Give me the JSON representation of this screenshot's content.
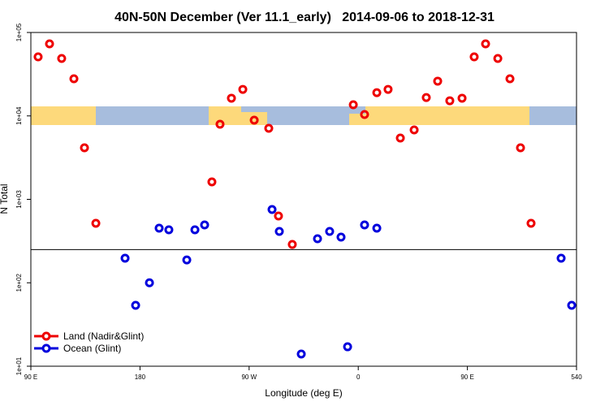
{
  "chart_data": {
    "type": "scatter",
    "title": "40N-50N December (Ver 11.1_early)   2014-09-06 to 2018-12-31",
    "x_label": "Longitude (deg E)",
    "y_label": "N Total",
    "y_scale": "log",
    "legend": "lower left",
    "hline": 250,
    "xlim": [
      90,
      540
    ],
    "xticks": [
      {
        "value": 90,
        "label": "90 E"
      },
      180,
      {
        "value": 270,
        "label": "90 W"
      },
      {
        "value": 360,
        "label": "0"
      },
      {
        "value": 450,
        "label": "90 E"
      },
      540
    ],
    "ylim": [
      10,
      100000
    ],
    "yticks": [
      {
        "value": 10,
        "label": "1e+01"
      },
      {
        "value": 100,
        "label": "1e+02"
      },
      {
        "value": 1000,
        "label": "1e+03"
      },
      {
        "value": 10000,
        "label": "1e+04"
      },
      {
        "value": 100000,
        "label": "1e+05"
      }
    ],
    "series": [
      {
        "name": "Land (Nadir&Glint)",
        "color": "#ee0000",
        "x": [
          96,
          105.4,
          115.4,
          125.5,
          134.2,
          143.6,
          239.3,
          246,
          255.4,
          264.8,
          274.2,
          286.2,
          294.2,
          305.6,
          355.9,
          365.2,
          375.3,
          384.6,
          394.7,
          406.1,
          416.1,
          425.5,
          435.5,
          445.6,
          455.6,
          465,
          475.1,
          485.1,
          493.8,
          502.5
        ],
        "values": [
          51000,
          73100,
          48800,
          27900,
          4150,
          516,
          1620,
          7950,
          16300,
          20800,
          8890,
          7110,
          632,
          288,
          13600,
          10400,
          19000,
          20800,
          5430,
          6790,
          16600,
          26100,
          15200,
          16300,
          51000,
          73100,
          48800,
          27900,
          4150,
          516
        ]
      },
      {
        "name": "Ocean (Glint)",
        "color": "#0000dd",
        "x": [
          167.7,
          176.4,
          187.8,
          195.8,
          203.8,
          218.6,
          225.3,
          233.3,
          288.9,
          294.9,
          313,
          326.4,
          336.4,
          345.8,
          351.2,
          365.2,
          375.3,
          527.3,
          536
        ],
        "values": [
          197,
          53.7,
          100,
          451,
          432,
          188,
          432,
          494,
          756,
          413,
          14,
          337,
          413,
          353,
          17.1,
          494,
          451,
          197,
          53.7
        ]
      }
    ]
  }
}
